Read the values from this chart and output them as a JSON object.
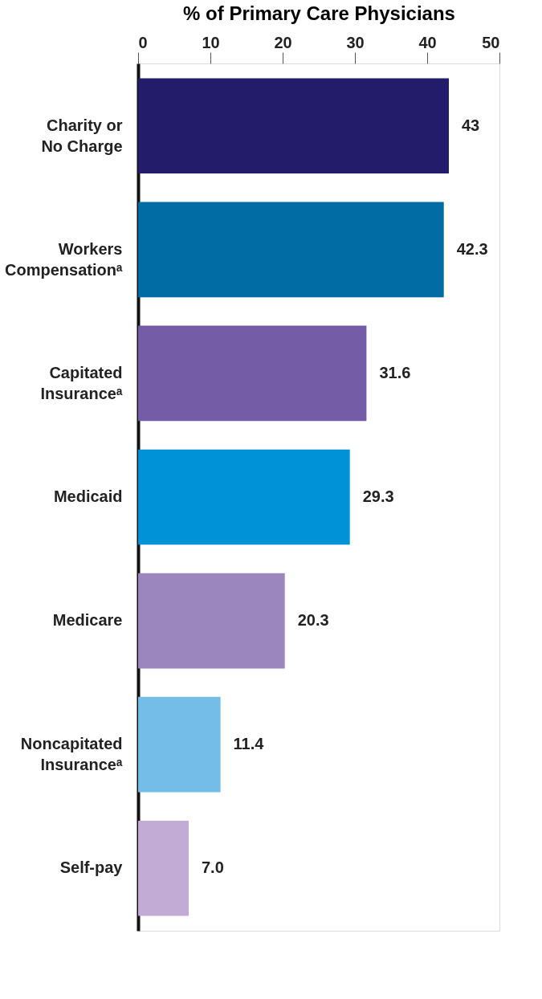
{
  "chart_data": {
    "type": "bar",
    "orientation": "horizontal",
    "xlabel": "% of Primary Care Physicians",
    "categories": [
      "Charity or\nNo Charge",
      "Workers\nCompensationᵃ",
      "Capitated\nInsuranceᵃ",
      "Medicaid",
      "Medicare",
      "Noncapitated\nInsuranceᵃ",
      "Self-pay"
    ],
    "values": [
      43,
      42.3,
      31.6,
      29.3,
      20.3,
      11.4,
      7.0
    ],
    "value_labels": [
      "43",
      "42.3",
      "31.6",
      "29.3",
      "20.3",
      "11.4",
      "7.0"
    ],
    "colors": [
      "#221c6b",
      "#006ca3",
      "#745ca6",
      "#0092d6",
      "#9b86be",
      "#74bde9",
      "#c2acd5"
    ],
    "xlim": [
      0,
      50
    ],
    "xticks": [
      0,
      10,
      20,
      30,
      40,
      50
    ],
    "grid": false,
    "legend": false
  }
}
